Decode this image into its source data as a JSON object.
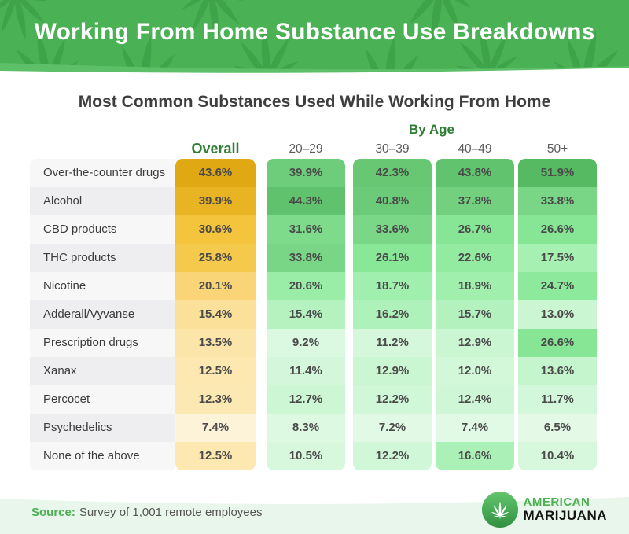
{
  "header": {
    "title": "Working From Home Substance Use Breakdowns"
  },
  "subtitle": "Most Common Substances Used While Working From Home",
  "table": {
    "overall_label": "Overall",
    "by_age_label": "By Age",
    "age_columns": [
      "20–29",
      "30–39",
      "40–49",
      "50+"
    ],
    "rows": [
      {
        "label": "Over-the-counter drugs",
        "overall": 43.6,
        "ages": [
          39.9,
          42.3,
          43.8,
          51.9
        ]
      },
      {
        "label": "Alcohol",
        "overall": 39.9,
        "ages": [
          44.3,
          40.8,
          37.8,
          33.8
        ]
      },
      {
        "label": "CBD products",
        "overall": 30.6,
        "ages": [
          31.6,
          33.6,
          26.7,
          26.6
        ]
      },
      {
        "label": "THC products",
        "overall": 25.8,
        "ages": [
          33.8,
          26.1,
          22.6,
          17.5
        ]
      },
      {
        "label": "Nicotine",
        "overall": 20.1,
        "ages": [
          20.6,
          18.7,
          18.9,
          24.7
        ]
      },
      {
        "label": "Adderall/Vyvanse",
        "overall": 15.4,
        "ages": [
          15.4,
          16.2,
          15.7,
          13.0
        ]
      },
      {
        "label": "Prescription drugs",
        "overall": 13.5,
        "ages": [
          9.2,
          11.2,
          12.9,
          26.6
        ]
      },
      {
        "label": "Xanax",
        "overall": 12.5,
        "ages": [
          11.4,
          12.9,
          12.0,
          13.6
        ]
      },
      {
        "label": "Percocet",
        "overall": 12.3,
        "ages": [
          12.7,
          12.2,
          12.4,
          11.7
        ]
      },
      {
        "label": "Psychedelics",
        "overall": 7.4,
        "ages": [
          8.3,
          7.2,
          7.4,
          6.5
        ]
      },
      {
        "label": "None of the above",
        "overall": 12.5,
        "ages": [
          10.5,
          12.2,
          16.6,
          10.4
        ]
      }
    ]
  },
  "footer": {
    "source_label": "Source:",
    "source_text": "Survey of 1,001 remote employees",
    "logo_line1": "American",
    "logo_line2": "Marijuana"
  },
  "colors": {
    "banner_green": "#4bb155",
    "banner_green_light": "#5dbf67",
    "leaf_green": "#2f8f3c",
    "heading_green": "#2e7e33",
    "source_green": "#4caf50",
    "footer_bg": "#e9f6eb",
    "label_row_odd": "#f7f7f8",
    "label_row_even": "#eeeef0",
    "value_text": "#4a4a4a",
    "gold_scale": [
      [
        7.4,
        "#fdf3d8"
      ],
      [
        12.5,
        "#fce8b0"
      ],
      [
        15.4,
        "#fbe09a"
      ],
      [
        20.1,
        "#f9d577"
      ],
      [
        25.8,
        "#f5c94c"
      ],
      [
        30.6,
        "#f3c43c"
      ],
      [
        39.9,
        "#e9b424"
      ],
      [
        43.6,
        "#e0a813"
      ]
    ],
    "green_scale": [
      [
        6.5,
        "#e4fae7"
      ],
      [
        12,
        "#d2f7d9"
      ],
      [
        17,
        "#a8f0b4"
      ],
      [
        21,
        "#98eda6"
      ],
      [
        27,
        "#86e695"
      ],
      [
        34,
        "#78d686"
      ],
      [
        40,
        "#6ecd7a"
      ],
      [
        44.5,
        "#60c16d"
      ],
      [
        52,
        "#55ba62"
      ]
    ]
  },
  "chart_data": {
    "type": "heatmap",
    "title": "Most Common Substances Used While Working From Home",
    "banner_title": "Working From Home Substance Use Breakdowns",
    "unit": "percent",
    "columns": [
      "Overall",
      "20–29",
      "30–39",
      "40–49",
      "50+"
    ],
    "row_labels": [
      "Over-the-counter drugs",
      "Alcohol",
      "CBD products",
      "THC products",
      "Nicotine",
      "Adderall/Vyvanse",
      "Prescription drugs",
      "Xanax",
      "Percocet",
      "Psychedelics",
      "None of the above"
    ],
    "values": [
      [
        43.6,
        39.9,
        42.3,
        43.8,
        51.9
      ],
      [
        39.9,
        44.3,
        40.8,
        37.8,
        33.8
      ],
      [
        30.6,
        31.6,
        33.6,
        26.7,
        26.6
      ],
      [
        25.8,
        33.8,
        26.1,
        22.6,
        17.5
      ],
      [
        20.1,
        20.6,
        18.7,
        18.9,
        24.7
      ],
      [
        15.4,
        15.4,
        16.2,
        15.7,
        13.0
      ],
      [
        13.5,
        9.2,
        11.2,
        12.9,
        26.6
      ],
      [
        12.5,
        11.4,
        12.9,
        12.0,
        13.6
      ],
      [
        12.3,
        12.7,
        12.2,
        12.4,
        11.7
      ],
      [
        7.4,
        8.3,
        7.2,
        7.4,
        6.5
      ],
      [
        12.5,
        10.5,
        12.2,
        16.6,
        10.4
      ]
    ],
    "color_encoding": "darker shade = higher percentage; Overall column gold scale, age columns green scale",
    "legend_position": "none",
    "source": "Survey of 1,001 remote employees"
  }
}
